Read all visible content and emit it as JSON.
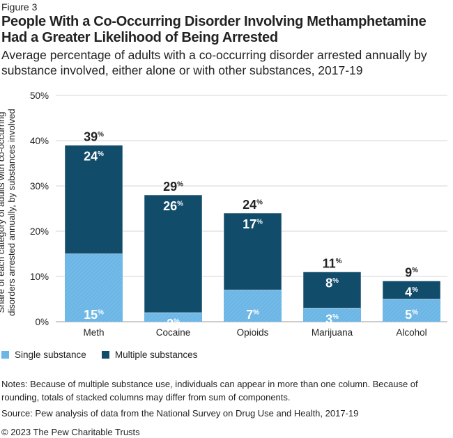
{
  "figure_label": "Figure 3",
  "title": "People With a Co-Occurring Disorder Involving Methamphetamine Had a Greater Likelihood of Being Arrested",
  "subtitle": "Average percentage of adults with a co-occurring disorder arrested annually by substance involved, either alone or with other substances, 2017-19",
  "notes": "Notes: Because of multiple substance use, individuals can appear in more than one column. Because of rounding, totals of stacked columns may differ from sum of components.",
  "source": "Source: Pew analysis of data from the National Survey on Drug Use and Health, 2017-19",
  "copyright": "© 2023 The Pew Charitable Trusts",
  "chart_data": {
    "type": "bar",
    "stacked": true,
    "ylabel": "Share of each category of adults with co-occurring disorders arrested annually, by substances involved",
    "xlabel": "",
    "ylim": [
      0,
      50
    ],
    "yticks": [
      "0%",
      "10%",
      "20%",
      "30%",
      "40%",
      "50%"
    ],
    "grid": true,
    "legend_position": "bottom-left",
    "categories": [
      "Meth",
      "Cocaine",
      "Opioids",
      "Marijuana",
      "Alcohol"
    ],
    "series": [
      {
        "name": "Single substance",
        "color": "#6cb6e6",
        "values": [
          15,
          2,
          7,
          3,
          5
        ]
      },
      {
        "name": "Multiple substances",
        "color": "#124c6b",
        "values": [
          24,
          26,
          17,
          8,
          4
        ]
      }
    ],
    "totals": [
      39,
      29,
      24,
      11,
      9
    ]
  }
}
